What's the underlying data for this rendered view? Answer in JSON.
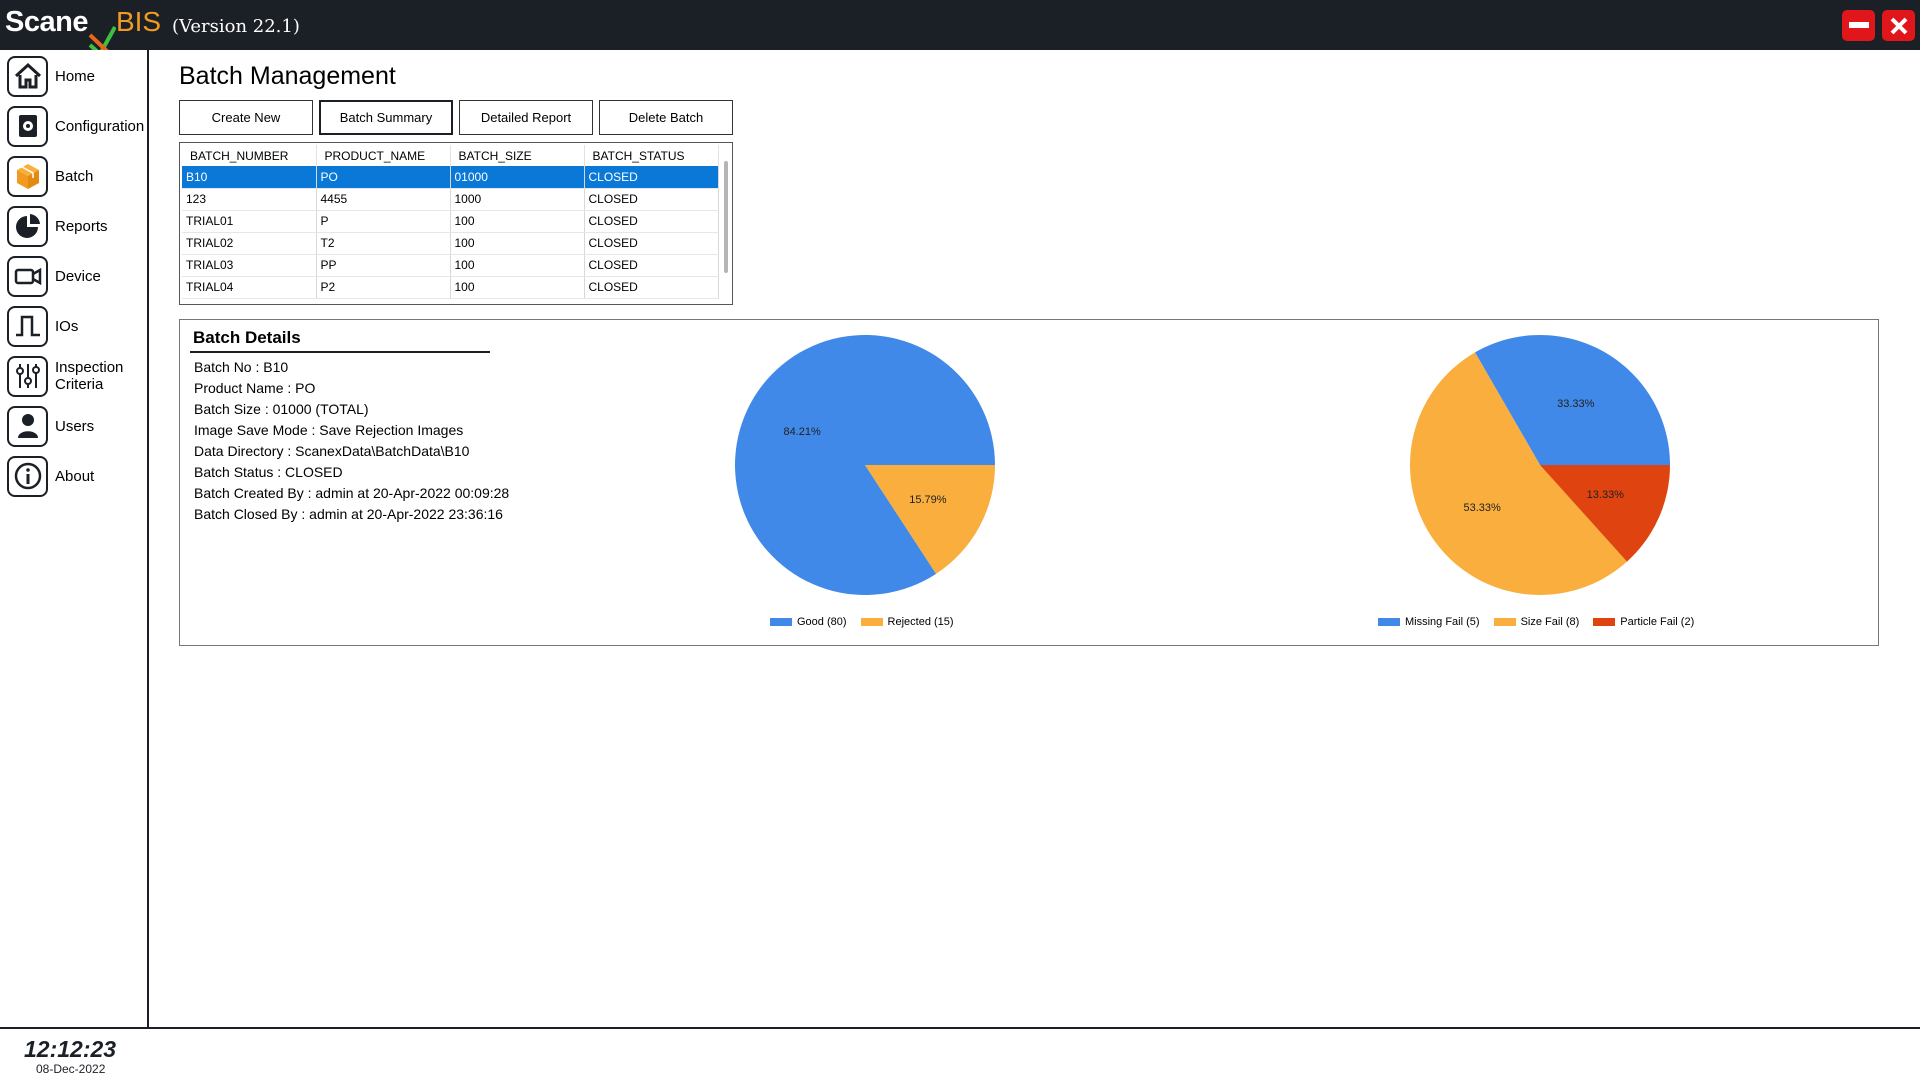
{
  "app": {
    "brand_main": "Scane",
    "brand_x": "x",
    "brand_sub": "BIS",
    "version": "(Version 22.1)"
  },
  "window_controls": {
    "minimize_icon": "minimize-icon",
    "close_icon": "close-icon",
    "color": "#e0161b"
  },
  "sidebar": {
    "items": [
      {
        "label": "Home",
        "icon": "home-icon"
      },
      {
        "label": "Configuration",
        "icon": "configuration-icon"
      },
      {
        "label": "Batch",
        "icon": "box-icon",
        "active": true
      },
      {
        "label": "Reports",
        "icon": "pie-chart-icon"
      },
      {
        "label": "Device",
        "icon": "camera-icon"
      },
      {
        "label": "IOs",
        "icon": "signal-icon"
      },
      {
        "label": "Inspection Criteria",
        "icon": "sliders-icon"
      },
      {
        "label": "Users",
        "icon": "user-icon"
      },
      {
        "label": "About",
        "icon": "info-icon"
      }
    ]
  },
  "footer": {
    "time": "12:12:23",
    "date": "08-Dec-2022"
  },
  "main": {
    "title": "Batch Management",
    "buttons": [
      {
        "label": "Create New"
      },
      {
        "label": "Batch Summary",
        "active": true
      },
      {
        "label": "Detailed Report"
      },
      {
        "label": "Delete Batch"
      }
    ],
    "grid": {
      "columns": [
        "BATCH_NUMBER",
        "PRODUCT_NAME",
        "BATCH_SIZE",
        "BATCH_STATUS"
      ],
      "rows": [
        [
          "B10",
          "PO",
          "01000",
          "CLOSED"
        ],
        [
          "123",
          "4455",
          "1000",
          "CLOSED"
        ],
        [
          "TRIAL01",
          "P",
          "100",
          "CLOSED"
        ],
        [
          "TRIAL02",
          "T2",
          "100",
          "CLOSED"
        ],
        [
          "TRIAL03",
          "PP",
          "100",
          "CLOSED"
        ],
        [
          "TRIAL04",
          "P2",
          "100",
          "CLOSED"
        ]
      ],
      "selected_row": 0
    },
    "details": {
      "title": "Batch Details",
      "lines": [
        "Batch No : B10",
        "Product Name : PO",
        "Batch Size : 01000 (TOTAL)",
        "Image Save Mode : Save Rejection Images",
        "Data Directory : ScanexData\\BatchData\\B10",
        "Batch Status : CLOSED",
        "Batch Created By : admin at 20-Apr-2022 00:09:28",
        "Batch Closed By : admin at 20-Apr-2022 23:36:16"
      ]
    }
  },
  "chart_data": [
    {
      "type": "pie",
      "slices": [
        {
          "label": "Good (80)",
          "value": 80,
          "percent_label": "84.21%",
          "color": "#4189e9"
        },
        {
          "label": "Rejected (15)",
          "value": 15,
          "percent_label": "15.79%",
          "color": "#f9ae3e"
        }
      ],
      "legend_position": "bottom"
    },
    {
      "type": "pie",
      "slices": [
        {
          "label": "Missing Fail (5)",
          "value": 5,
          "percent_label": "33.33%",
          "color": "#4189e9"
        },
        {
          "label": "Size Fail (8)",
          "value": 8,
          "percent_label": "53.33%",
          "color": "#f9ae3e"
        },
        {
          "label": "Particle Fail (2)",
          "value": 2,
          "percent_label": "13.33%",
          "color": "#df4310"
        }
      ],
      "legend_position": "bottom"
    }
  ]
}
